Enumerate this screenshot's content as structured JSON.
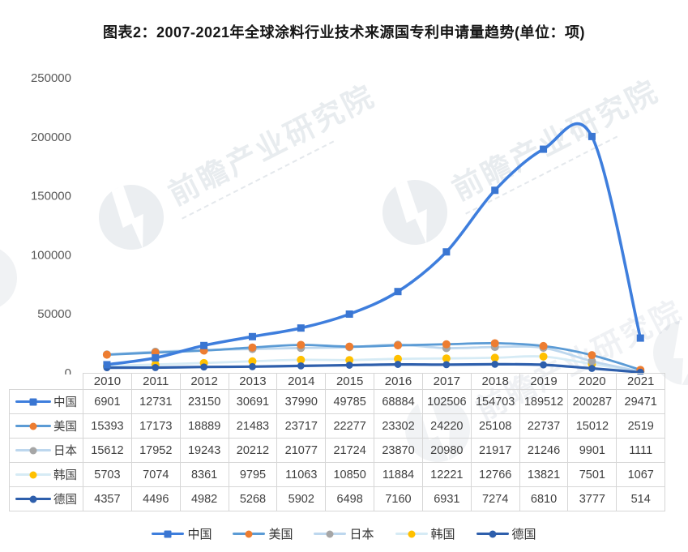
{
  "title": "图表2：2007-2021年全球涂料行业技术来源国专利申请量趋势(单位：项)",
  "watermark": {
    "brand": "前瞻产业研究院"
  },
  "colors": {
    "china_line": "#3e7edd",
    "usa_line": "#5b9bd5",
    "usa_marker": "#ed7d31",
    "japan_line": "#bdd7ee",
    "japan_marker": "#a6a6a6",
    "korea_line": "#d6ebf5",
    "korea_marker": "#ffc000",
    "germany_line": "#2e5fac",
    "table_border": "#d6d6d6",
    "axis_text": "#595959"
  },
  "chart_data": {
    "type": "line",
    "title": "2007-2021年全球涂料行业技术来源国专利申请量趋势",
    "unit": "项",
    "xlabel": "",
    "ylabel": "",
    "ylim": [
      0,
      250000
    ],
    "yticks": [
      0,
      50000,
      100000,
      150000,
      200000,
      250000
    ],
    "grid": false,
    "smooth": true,
    "legend_position": "bottom",
    "categories": [
      "2010",
      "2011",
      "2012",
      "2013",
      "2014",
      "2015",
      "2016",
      "2017",
      "2018",
      "2019",
      "2020",
      "2021"
    ],
    "series": [
      {
        "name": "中国",
        "marker": "square",
        "line_color": "#3e7edd",
        "marker_color": "#3a76d2",
        "values": [
          6901,
          12731,
          23150,
          30691,
          37990,
          49785,
          68884,
          102506,
          154703,
          189512,
          200287,
          29471
        ]
      },
      {
        "name": "美国",
        "marker": "circle",
        "line_color": "#5b9bd5",
        "marker_color": "#ed7d31",
        "values": [
          15393,
          17173,
          18889,
          21483,
          23717,
          22277,
          23302,
          24220,
          25108,
          22737,
          15012,
          2519
        ]
      },
      {
        "name": "日本",
        "marker": "circle",
        "line_color": "#bdd7ee",
        "marker_color": "#a6a6a6",
        "values": [
          15612,
          17952,
          19243,
          20212,
          21077,
          21724,
          23870,
          20980,
          21917,
          21246,
          9901,
          1111
        ]
      },
      {
        "name": "韩国",
        "marker": "circle",
        "line_color": "#d6ebf5",
        "marker_color": "#ffc000",
        "values": [
          5703,
          7074,
          8361,
          9795,
          11063,
          10850,
          11884,
          12221,
          12766,
          13821,
          7501,
          1067
        ]
      },
      {
        "name": "德国",
        "marker": "circle",
        "line_color": "#2e5fac",
        "marker_color": "#2e5fac",
        "values": [
          4357,
          4496,
          4982,
          5268,
          5902,
          6498,
          7160,
          6931,
          7274,
          6810,
          3777,
          514
        ]
      }
    ]
  }
}
